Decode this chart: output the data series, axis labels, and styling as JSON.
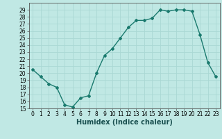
{
  "x": [
    0,
    1,
    2,
    3,
    4,
    5,
    6,
    7,
    8,
    9,
    10,
    11,
    12,
    13,
    14,
    15,
    16,
    17,
    18,
    19,
    20,
    21,
    22,
    23
  ],
  "y": [
    20.5,
    19.5,
    18.5,
    18.0,
    15.5,
    15.2,
    16.5,
    16.8,
    20.0,
    22.5,
    23.5,
    25.0,
    26.5,
    27.5,
    27.5,
    27.8,
    29.0,
    28.8,
    29.0,
    29.0,
    28.8,
    25.5,
    21.5,
    19.5
  ],
  "line_color": "#1a7a6e",
  "marker": "D",
  "marker_size": 2,
  "bg_color": "#c0e8e4",
  "grid_color": "#aad8d4",
  "xlabel": "Humidex (Indice chaleur)",
  "xlim": [
    -0.5,
    23.5
  ],
  "ylim": [
    15,
    30
  ],
  "yticks": [
    15,
    16,
    17,
    18,
    19,
    20,
    21,
    22,
    23,
    24,
    25,
    26,
    27,
    28,
    29
  ],
  "xticks": [
    0,
    1,
    2,
    3,
    4,
    5,
    6,
    7,
    8,
    9,
    10,
    11,
    12,
    13,
    14,
    15,
    16,
    17,
    18,
    19,
    20,
    21,
    22,
    23
  ],
  "xlabel_fontsize": 7,
  "tick_fontsize": 5.5,
  "line_width": 1.0
}
